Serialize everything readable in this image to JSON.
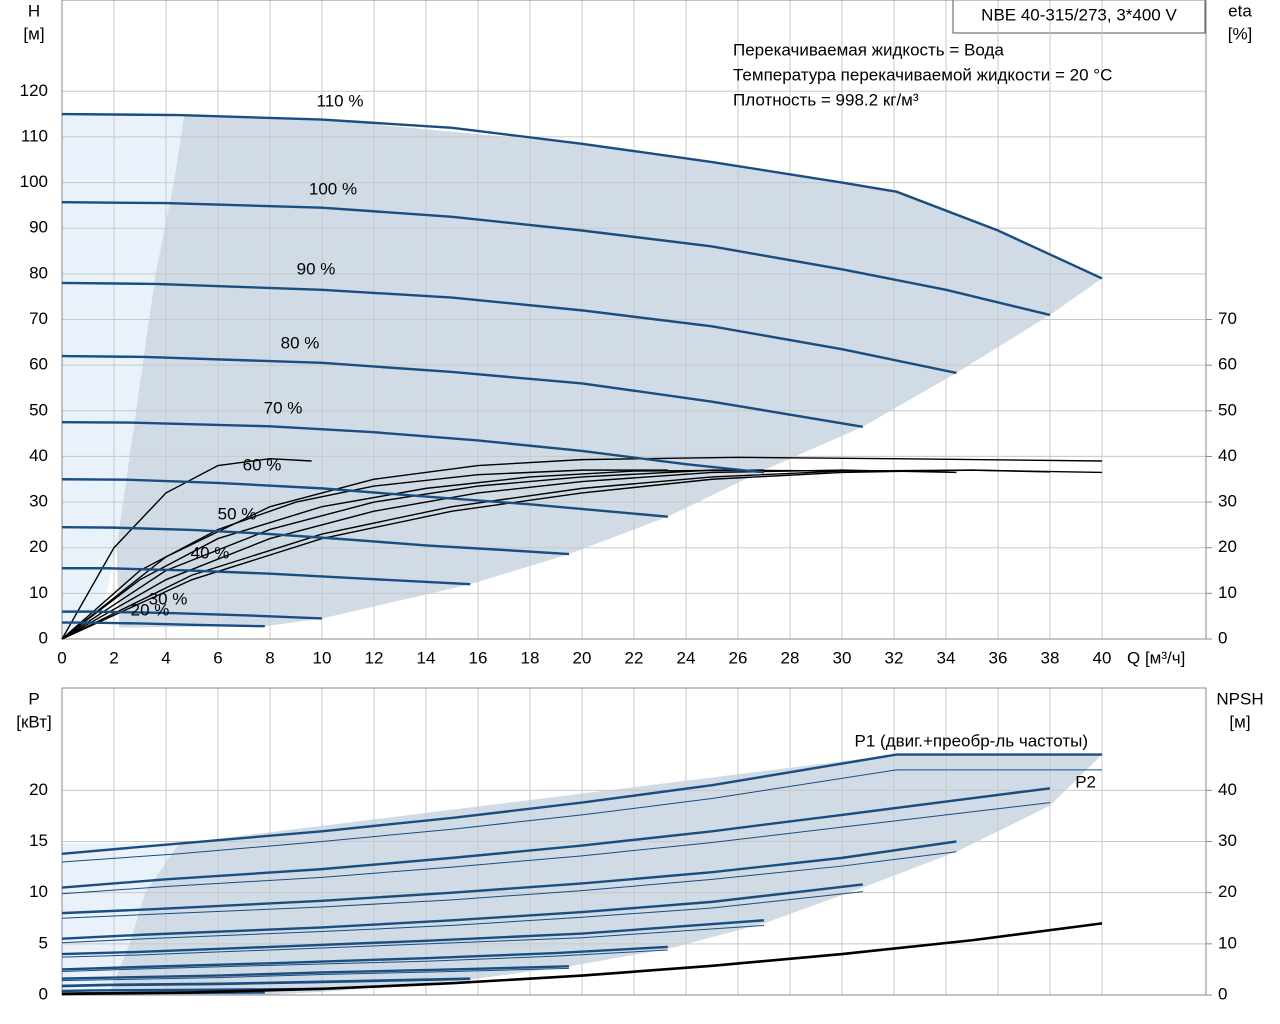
{
  "chart_data": [
    {
      "type": "line",
      "title": "NBE 40-315/273, 3*400 V",
      "notes": [
        "Перекачиваемая жидкость = Вода",
        "Температура перекачиваемой жидкости = 20 °C",
        "Плотность = 998.2 кг/м³"
      ],
      "x_label": "Q [м³/ч]",
      "y_label": [
        "H",
        "[м]"
      ],
      "y2_label": [
        "eta",
        "[%]"
      ],
      "xlim": [
        0,
        44
      ],
      "xticks": [
        0,
        2,
        4,
        6,
        8,
        10,
        12,
        14,
        16,
        18,
        20,
        22,
        24,
        26,
        28,
        30,
        32,
        34,
        36,
        38,
        40
      ],
      "ylim": [
        0,
        140
      ],
      "yticks": [
        0,
        10,
        20,
        30,
        40,
        50,
        60,
        70,
        80,
        90,
        100,
        110,
        120
      ],
      "y2lim": [
        0,
        140
      ],
      "y2ticks": [
        0,
        10,
        20,
        30,
        40,
        50,
        60,
        70
      ],
      "grid": true,
      "range_color": "#d0dbe6",
      "light_color": "#e9f2fb",
      "light_range": {
        "x": [
          0,
          4.7,
          4.3,
          3.6,
          3.1,
          2.6,
          2.1,
          1.5,
          0
        ],
        "values": [
          115,
          115,
          100,
          80,
          60,
          40,
          20,
          5,
          0
        ]
      },
      "operating_range": {
        "x": [
          4.7,
          10,
          20,
          30,
          32.1,
          36,
          40,
          38,
          34.4,
          30.8,
          27,
          23.3,
          19.5,
          15.7,
          10,
          7.8,
          2.2,
          2.1,
          2.6,
          3.1,
          3.6,
          4.3
        ],
        "values": [
          114.8,
          113.8,
          108.5,
          100,
          98,
          89.5,
          79,
          71,
          58.3,
          46.5,
          37,
          26.8,
          18.6,
          12,
          4.5,
          2.8,
          2.5,
          20,
          40,
          60,
          80,
          100
        ]
      },
      "series": [
        {
          "name": "110 %",
          "color": "#1a4d80",
          "x": [
            0,
            4.5,
            10,
            15,
            20,
            25,
            30,
            32.1,
            36,
            40
          ],
          "values": [
            115,
            114.8,
            113.8,
            112,
            108.5,
            104.5,
            100,
            98,
            89.5,
            79
          ]
        },
        {
          "name": "100 %",
          "color": "#1a4d80",
          "x": [
            0,
            4,
            10,
            15,
            20,
            25,
            30,
            34,
            38
          ],
          "values": [
            95.7,
            95.5,
            94.5,
            92.5,
            89.5,
            86,
            81,
            76.5,
            71
          ]
        },
        {
          "name": "90 %",
          "color": "#1a4d80",
          "x": [
            0,
            3.6,
            10,
            15,
            20,
            25,
            30,
            34.4
          ],
          "values": [
            78,
            77.8,
            76.5,
            74.8,
            72,
            68.5,
            63.5,
            58.3
          ]
        },
        {
          "name": "80 %",
          "color": "#1a4d80",
          "x": [
            0,
            3.2,
            10,
            15,
            20,
            25,
            30.8
          ],
          "values": [
            62,
            61.8,
            60.5,
            58.5,
            56,
            52,
            46.5
          ]
        },
        {
          "name": "70 %",
          "color": "#1a4d80",
          "x": [
            0,
            2.8,
            8,
            12,
            16,
            20,
            24,
            27
          ],
          "values": [
            47.5,
            47.4,
            46.6,
            45.3,
            43.5,
            41.2,
            38.3,
            36.5
          ]
        },
        {
          "name": "60 %",
          "color": "#1a4d80",
          "x": [
            0,
            2.5,
            6,
            10,
            14,
            18,
            23.3
          ],
          "values": [
            35,
            34.9,
            34.2,
            33,
            31.2,
            29.5,
            26.8
          ]
        },
        {
          "name": "50 %",
          "color": "#1a4d80",
          "x": [
            0,
            2,
            5,
            8,
            11,
            14,
            17,
            19.5
          ],
          "values": [
            24.5,
            24.4,
            23.9,
            23,
            21.8,
            20.5,
            19.5,
            18.6
          ]
        },
        {
          "name": "40 %",
          "color": "#1a4d80",
          "x": [
            0,
            1.7,
            5,
            8,
            12,
            15.7
          ],
          "values": [
            15.5,
            15.5,
            15,
            14.3,
            13.1,
            12
          ]
        },
        {
          "name": "30 %",
          "color": "#1a4d80",
          "x": [
            0,
            1.2,
            4,
            7,
            10
          ],
          "values": [
            6,
            6,
            5.7,
            5.2,
            4.5
          ]
        },
        {
          "name": "20 %",
          "color": "#1a4d80",
          "x": [
            0,
            1,
            3,
            5,
            7.8
          ],
          "values": [
            3.6,
            3.6,
            3.4,
            3.1,
            2.8
          ]
        }
      ],
      "eta_color": "#000000",
      "eta_curves": [
        {
          "axis": "y2",
          "x": [
            0,
            5,
            10,
            15,
            20,
            25,
            30,
            35,
            40
          ],
          "values": [
            0,
            13,
            22,
            28,
            32,
            35,
            36.5,
            37,
            36.5
          ]
        },
        {
          "axis": "y2",
          "x": [
            0,
            5,
            10,
            15,
            20,
            25,
            30,
            35,
            38
          ],
          "values": [
            0,
            14,
            23,
            29,
            33,
            35.5,
            36.8,
            37,
            36.6
          ]
        },
        {
          "axis": "y2",
          "x": [
            0,
            4,
            8,
            12,
            16,
            20,
            25,
            30,
            34.4
          ],
          "values": [
            0,
            13,
            22,
            28,
            32,
            34.5,
            36.5,
            37,
            36.5
          ]
        },
        {
          "axis": "y2",
          "x": [
            0,
            4,
            8,
            12,
            16,
            20,
            25,
            30.8
          ],
          "values": [
            0,
            15,
            24,
            30,
            33.5,
            35.5,
            37,
            36.8
          ]
        },
        {
          "axis": "y2",
          "x": [
            0,
            3,
            6,
            10,
            14,
            18,
            22,
            27
          ],
          "values": [
            0,
            13,
            22,
            29,
            33,
            35.5,
            36.8,
            37
          ]
        },
        {
          "axis": "y2",
          "x": [
            0,
            3,
            6,
            9,
            12,
            16,
            20,
            23.3
          ],
          "values": [
            0,
            15,
            24,
            30,
            33.5,
            36,
            37,
            37
          ]
        },
        {
          "axis": "y2",
          "x": [
            0,
            2,
            4,
            6,
            8,
            9.6
          ],
          "values": [
            0,
            20,
            32,
            38,
            39.5,
            39
          ]
        },
        {
          "axis": "y2",
          "x": [
            0,
            4,
            8,
            12,
            16,
            20,
            26,
            32,
            40
          ],
          "values": [
            0,
            18,
            29,
            35,
            38,
            39.3,
            39.8,
            39.5,
            39
          ]
        }
      ]
    },
    {
      "type": "line",
      "y_label": [
        "P",
        "[кВт]"
      ],
      "y2_label": [
        "NPSH",
        "[м]"
      ],
      "xlim": [
        0,
        44
      ],
      "ylim": [
        0,
        30
      ],
      "yticks": [
        0,
        5,
        10,
        15,
        20
      ],
      "y2lim": [
        0,
        60
      ],
      "y2ticks": [
        0,
        10,
        20,
        30,
        40
      ],
      "grid": true,
      "p1_label": "P1 (двиг.+преобр-ль частоты)",
      "p2_label": "P2",
      "range_color": "#d0dbe6",
      "light_color": "#e9f2fb",
      "light_range": {
        "x": [
          0,
          4.5,
          3.2,
          2.6,
          1.8,
          0
        ],
        "values": [
          14.8,
          14.8,
          10,
          5,
          0,
          0
        ]
      },
      "operating_range": {
        "x": [
          4.5,
          32.1,
          40,
          38,
          34.4,
          30.8,
          27,
          23.3,
          19.5,
          15.7,
          10,
          7.8,
          1.8,
          2.6,
          3.2
        ],
        "values": [
          14.8,
          23.5,
          23.5,
          18.5,
          14,
          10.5,
          7,
          4.5,
          2.8,
          1.5,
          0.3,
          0,
          0,
          5,
          10
        ]
      },
      "power_color": "#1a4d80",
      "power_curves": [
        {
          "x": [
            0,
            4.5,
            10,
            15,
            20,
            25,
            32.1,
            36,
            40
          ],
          "p1": [
            13.8,
            14.8,
            16,
            17.3,
            18.8,
            20.5,
            23.5,
            23.5,
            23.5
          ],
          "p2": [
            13,
            13.8,
            15,
            16.2,
            17.6,
            19.2,
            22,
            22,
            22
          ]
        },
        {
          "x": [
            0,
            4,
            10,
            15,
            20,
            25,
            30,
            34,
            38
          ],
          "p1": [
            10.5,
            11.3,
            12.3,
            13.4,
            14.6,
            16,
            17.6,
            18.9,
            20.2
          ],
          "p2": [
            9.9,
            10.6,
            11.5,
            12.5,
            13.6,
            14.9,
            16.4,
            17.6,
            18.8
          ]
        },
        {
          "x": [
            0,
            3.6,
            10,
            15,
            20,
            25,
            30,
            34.4
          ],
          "p1": [
            8,
            8.4,
            9.2,
            10,
            10.9,
            12,
            13.4,
            15
          ],
          "p2": [
            7.5,
            7.9,
            8.6,
            9.3,
            10.2,
            11.3,
            12.6,
            14
          ]
        },
        {
          "x": [
            0,
            3.2,
            10,
            15,
            20,
            25,
            30.8
          ],
          "p1": [
            5.5,
            5.9,
            6.6,
            7.3,
            8.1,
            9.1,
            10.8
          ],
          "p2": [
            5.1,
            5.5,
            6.2,
            6.8,
            7.6,
            8.5,
            10.1
          ]
        },
        {
          "x": [
            0,
            2.8,
            8,
            14,
            20,
            27
          ],
          "p1": [
            4,
            4.2,
            4.7,
            5.3,
            6,
            7.3
          ],
          "p2": [
            3.7,
            3.9,
            4.4,
            5,
            5.6,
            6.8
          ]
        },
        {
          "x": [
            0,
            2.5,
            8,
            14,
            19,
            23.3
          ],
          "p1": [
            2.5,
            2.7,
            3.1,
            3.6,
            4.1,
            4.7
          ],
          "p2": [
            2.3,
            2.5,
            2.9,
            3.3,
            3.8,
            4.4
          ]
        },
        {
          "x": [
            0,
            2,
            6,
            10,
            15,
            19.5
          ],
          "p1": [
            1.6,
            1.7,
            1.9,
            2.2,
            2.5,
            2.8
          ],
          "p2": [
            1.4,
            1.5,
            1.7,
            2,
            2.3,
            2.6
          ]
        },
        {
          "x": [
            0,
            1.7,
            6,
            10,
            15.7
          ],
          "p1": [
            0.9,
            1,
            1.1,
            1.3,
            1.6
          ],
          "p2": [
            0.8,
            0.9,
            1,
            1.2,
            1.5
          ]
        },
        {
          "x": [
            0,
            1.2,
            5,
            10
          ],
          "p1": [
            0.4,
            0.45,
            0.5,
            0.6
          ],
          "p2": [
            0.35,
            0.4,
            0.45,
            0.55
          ]
        },
        {
          "x": [
            0,
            1,
            4,
            7.8
          ],
          "p1": [
            0.15,
            0.18,
            0.2,
            0.25
          ],
          "p2": [
            0.12,
            0.15,
            0.18,
            0.22
          ]
        }
      ],
      "npsh": {
        "axis": "y2",
        "color": "#000000",
        "x": [
          0,
          5,
          10,
          15,
          20,
          25,
          30,
          35,
          40
        ],
        "values": [
          0.2,
          0.5,
          1.2,
          2.3,
          3.8,
          5.7,
          8,
          10.7,
          14
        ]
      }
    }
  ]
}
